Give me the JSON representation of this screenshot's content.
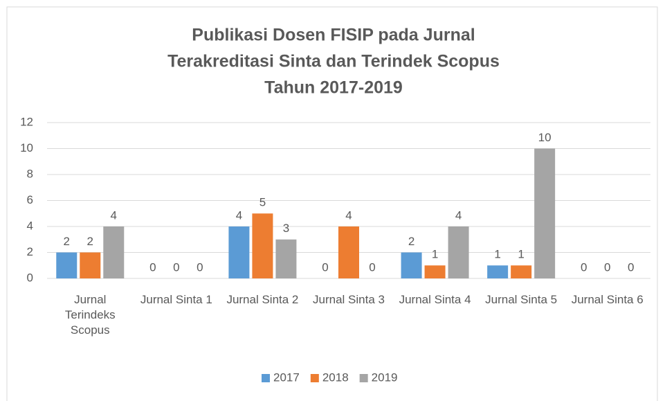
{
  "chart_data": {
    "type": "bar",
    "title": [
      "Publikasi Dosen FISIP pada Jurnal",
      "Terakreditasi Sinta dan Terindek Scopus",
      "Tahun 2017-2019"
    ],
    "categories": [
      "Jurnal Terindeks Scopus",
      "Jurnal Sinta 1",
      "Jurnal Sinta 2",
      "Jurnal Sinta 3",
      "Jurnal Sinta 4",
      "Jurnal Sinta 5",
      "Jurnal Sinta 6"
    ],
    "series": [
      {
        "name": "2017",
        "color": "#5b9bd5",
        "values": [
          2,
          0,
          4,
          0,
          2,
          1,
          0
        ]
      },
      {
        "name": "2018",
        "color": "#ed7d31",
        "values": [
          2,
          0,
          5,
          4,
          1,
          1,
          0
        ]
      },
      {
        "name": "2019",
        "color": "#a5a5a5",
        "values": [
          4,
          0,
          3,
          0,
          4,
          10,
          0
        ]
      }
    ],
    "ylim": [
      0,
      12
    ],
    "yticks": [
      0,
      2,
      4,
      6,
      8,
      10,
      12
    ],
    "grid": true,
    "legend": "bottom"
  }
}
